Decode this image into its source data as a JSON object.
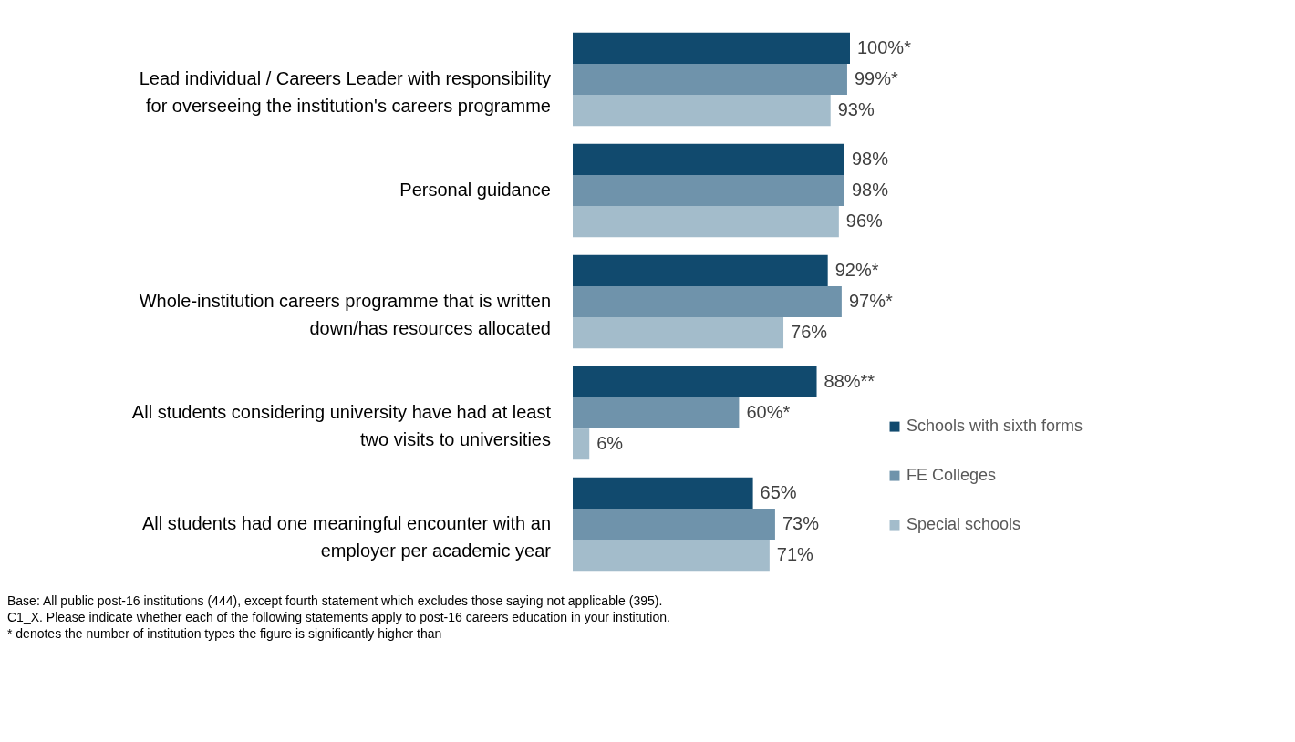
{
  "chart_data": {
    "type": "bar",
    "orientation": "horizontal",
    "categories": [
      "Lead individual / Careers Leader with responsibility for overseeing the institution's careers programme",
      "Personal guidance",
      "Whole-institution careers programme that is written down/has resources allocated",
      "All students considering university have had at least two visits to universities",
      "All students had one meaningful encounter with an employer per academic year"
    ],
    "series": [
      {
        "name": "Schools with sixth forms",
        "color": "#114a6e",
        "values": [
          100,
          98,
          92,
          88,
          65
        ],
        "value_labels": [
          "100%*",
          "98%",
          "92%*",
          "88%**",
          "65%"
        ]
      },
      {
        "name": "FE Colleges",
        "color": "#6f93ab",
        "values": [
          99,
          98,
          97,
          60,
          73
        ],
        "value_labels": [
          "99%*",
          "98%",
          "97%*",
          "60%*",
          "73%"
        ]
      },
      {
        "name": "Special schools",
        "color": "#a3bccb",
        "values": [
          93,
          96,
          76,
          6,
          71
        ],
        "value_labels": [
          "93%",
          "96%",
          "76%",
          "6%",
          "71%"
        ]
      }
    ],
    "legend": "right",
    "annotations": [
      "Base: All public post-16 institutions (444), except fourth statement which excludes those saying not applicable (395).",
      "C1_X. Please indicate whether each of the following statements apply to post-16 careers education in your institution.",
      "* denotes the number of institution types the figure is significantly higher than"
    ]
  }
}
